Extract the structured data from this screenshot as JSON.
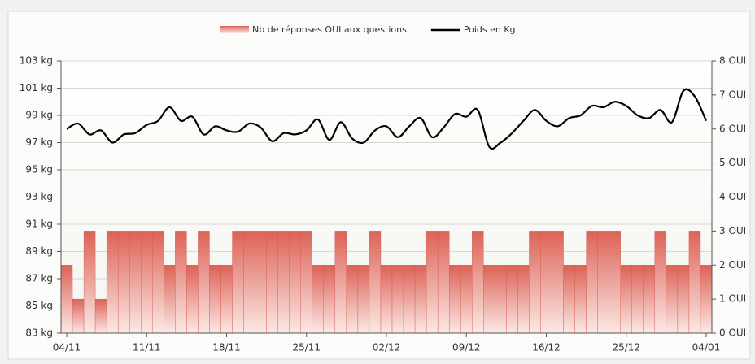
{
  "chart_data": {
    "type": "bar",
    "categories": [
      "04/11",
      null,
      null,
      null,
      null,
      null,
      null,
      "11/11",
      null,
      null,
      null,
      null,
      null,
      null,
      "18/11",
      null,
      null,
      null,
      null,
      null,
      null,
      "25/11",
      null,
      null,
      null,
      null,
      null,
      null,
      "02/12",
      null,
      null,
      null,
      null,
      null,
      null,
      "09/12",
      null,
      null,
      null,
      null,
      null,
      null,
      "16/12",
      null,
      null,
      null,
      null,
      null,
      null,
      "25/12",
      null,
      null,
      null,
      null,
      null,
      null,
      "04/01"
    ],
    "series": [
      {
        "name": "Nb de réponses OUI aux questions",
        "type": "bar",
        "axis": "y2",
        "color": "#d9574e",
        "values": [
          2,
          1,
          3,
          1,
          3,
          3,
          3,
          3,
          3,
          2,
          3,
          2,
          3,
          2,
          2,
          3,
          3,
          3,
          3,
          3,
          3,
          3,
          2,
          2,
          3,
          2,
          2,
          3,
          2,
          2,
          2,
          2,
          3,
          3,
          2,
          2,
          3,
          2,
          2,
          2,
          2,
          3,
          3,
          3,
          2,
          2,
          3,
          3,
          3,
          2,
          2,
          2,
          3,
          2,
          2,
          3,
          2
        ]
      },
      {
        "name": "Poids en Kg",
        "type": "line",
        "color": "#000000",
        "values": [
          98.0,
          98.4,
          97.6,
          97.9,
          97.0,
          97.6,
          97.7,
          98.3,
          98.6,
          99.6,
          98.6,
          98.9,
          97.6,
          98.2,
          97.9,
          97.8,
          98.4,
          98.1,
          97.1,
          97.7,
          97.6,
          97.9,
          98.7,
          97.2,
          98.5,
          97.3,
          97.0,
          97.9,
          98.2,
          97.4,
          98.2,
          98.8,
          97.4,
          98.1,
          99.1,
          98.9,
          99.4,
          96.7,
          97.0,
          97.7,
          98.6,
          99.4,
          98.6,
          98.2,
          98.8,
          99.0,
          99.7,
          99.6,
          100.0,
          99.7,
          99.0,
          98.8,
          99.4,
          98.5,
          100.8,
          100.4,
          98.6
        ]
      }
    ],
    "ylim": [
      83,
      103
    ],
    "yticks": [
      {
        "value": 83,
        "label": "83 kg"
      },
      {
        "value": 85,
        "label": "85 kg"
      },
      {
        "value": 87,
        "label": "87 kg"
      },
      {
        "value": 89,
        "label": "89 kg"
      },
      {
        "value": 91,
        "label": "91 kg"
      },
      {
        "value": 93,
        "label": "93 kg"
      },
      {
        "value": 95,
        "label": "95 kg"
      },
      {
        "value": 97,
        "label": "97 kg"
      },
      {
        "value": 99,
        "label": "99 kg"
      },
      {
        "value": 101,
        "label": "101 kg"
      },
      {
        "value": 103,
        "label": "103 kg"
      }
    ],
    "y2lim": [
      0,
      8
    ],
    "y2ticks": [
      {
        "value": 0,
        "label": "0 OUI"
      },
      {
        "value": 1,
        "label": "1 OUI"
      },
      {
        "value": 2,
        "label": "2 OUI"
      },
      {
        "value": 3,
        "label": "3 OUI"
      },
      {
        "value": 4,
        "label": "4 OUI"
      },
      {
        "value": 5,
        "label": "5 OUI"
      },
      {
        "value": 6,
        "label": "6 OUI"
      },
      {
        "value": 7,
        "label": "7 OUI"
      },
      {
        "value": 8,
        "label": "8 OUI"
      }
    ],
    "grid": true,
    "legend": "top"
  }
}
